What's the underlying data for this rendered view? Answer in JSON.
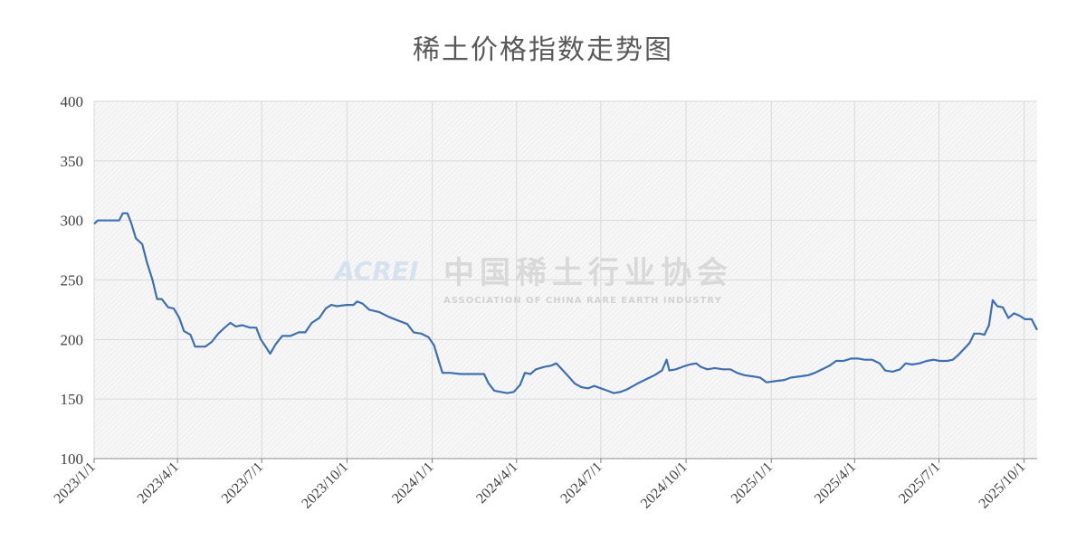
{
  "chart_data": {
    "type": "line",
    "title": "稀土价格指数走势图",
    "xlabel": "",
    "ylabel": "",
    "ylim": [
      100,
      400
    ],
    "yticks": [
      100,
      150,
      200,
      250,
      300,
      350,
      400
    ],
    "xticks": [
      "2023/1/1",
      "2023/4/1",
      "2023/7/1",
      "2023/10/1",
      "2024/1/1",
      "2024/4/1",
      "2024/7/1",
      "2024/10/1",
      "2025/1/1",
      "2025/4/1",
      "2025/7/1",
      "2025/10/1"
    ],
    "xlim": [
      "2023-01-01",
      "2025-10-15"
    ],
    "grid": true,
    "legend": "none",
    "series": [
      {
        "color": "#3d6fb4",
        "points": [
          [
            "2023-01-01",
            297
          ],
          [
            "2023-01-05",
            300
          ],
          [
            "2023-01-15",
            300
          ],
          [
            "2023-01-28",
            300
          ],
          [
            "2023-02-01",
            306
          ],
          [
            "2023-02-06",
            306
          ],
          [
            "2023-02-10",
            298
          ],
          [
            "2023-02-15",
            285
          ],
          [
            "2023-02-22",
            280
          ],
          [
            "2023-02-27",
            265
          ],
          [
            "2023-03-05",
            250
          ],
          [
            "2023-03-10",
            234
          ],
          [
            "2023-03-15",
            234
          ],
          [
            "2023-03-22",
            227
          ],
          [
            "2023-03-28",
            226
          ],
          [
            "2023-04-03",
            218
          ],
          [
            "2023-04-08",
            207
          ],
          [
            "2023-04-15",
            204
          ],
          [
            "2023-04-20",
            194
          ],
          [
            "2023-05-01",
            194
          ],
          [
            "2023-05-08",
            198
          ],
          [
            "2023-05-15",
            205
          ],
          [
            "2023-05-22",
            210
          ],
          [
            "2023-05-28",
            214
          ],
          [
            "2023-06-03",
            211
          ],
          [
            "2023-06-10",
            212
          ],
          [
            "2023-06-18",
            210
          ],
          [
            "2023-06-25",
            210
          ],
          [
            "2023-06-30",
            200
          ],
          [
            "2023-07-06",
            193
          ],
          [
            "2023-07-10",
            188
          ],
          [
            "2023-07-16",
            196
          ],
          [
            "2023-07-23",
            203
          ],
          [
            "2023-08-01",
            203
          ],
          [
            "2023-08-10",
            206
          ],
          [
            "2023-08-17",
            206
          ],
          [
            "2023-08-24",
            214
          ],
          [
            "2023-09-01",
            218
          ],
          [
            "2023-09-08",
            226
          ],
          [
            "2023-09-14",
            229
          ],
          [
            "2023-09-20",
            228
          ],
          [
            "2023-10-01",
            229
          ],
          [
            "2023-10-08",
            229
          ],
          [
            "2023-10-12",
            232
          ],
          [
            "2023-10-18",
            230
          ],
          [
            "2023-10-25",
            225
          ],
          [
            "2023-11-05",
            223
          ],
          [
            "2023-11-15",
            219
          ],
          [
            "2023-11-25",
            216
          ],
          [
            "2023-12-05",
            213
          ],
          [
            "2023-12-12",
            206
          ],
          [
            "2023-12-20",
            205
          ],
          [
            "2023-12-28",
            202
          ],
          [
            "2024-01-03",
            195
          ],
          [
            "2024-01-08",
            182
          ],
          [
            "2024-01-12",
            172
          ],
          [
            "2024-01-20",
            172
          ],
          [
            "2024-02-01",
            171
          ],
          [
            "2024-02-15",
            171
          ],
          [
            "2024-02-26",
            171
          ],
          [
            "2024-03-02",
            163
          ],
          [
            "2024-03-08",
            157
          ],
          [
            "2024-03-15",
            156
          ],
          [
            "2024-03-22",
            155
          ],
          [
            "2024-03-29",
            156
          ],
          [
            "2024-04-05",
            162
          ],
          [
            "2024-04-10",
            172
          ],
          [
            "2024-04-16",
            171
          ],
          [
            "2024-04-22",
            175
          ],
          [
            "2024-05-01",
            177
          ],
          [
            "2024-05-08",
            178
          ],
          [
            "2024-05-14",
            180
          ],
          [
            "2024-05-20",
            175
          ],
          [
            "2024-05-27",
            169
          ],
          [
            "2024-06-03",
            163
          ],
          [
            "2024-06-10",
            160
          ],
          [
            "2024-06-17",
            159
          ],
          [
            "2024-06-24",
            161
          ],
          [
            "2024-07-01",
            159
          ],
          [
            "2024-07-08",
            157
          ],
          [
            "2024-07-15",
            155
          ],
          [
            "2024-07-22",
            156
          ],
          [
            "2024-07-29",
            158
          ],
          [
            "2024-08-05",
            161
          ],
          [
            "2024-08-12",
            164
          ],
          [
            "2024-08-20",
            167
          ],
          [
            "2024-08-28",
            170
          ],
          [
            "2024-09-05",
            174
          ],
          [
            "2024-09-10",
            183
          ],
          [
            "2024-09-13",
            174
          ],
          [
            "2024-09-20",
            175
          ],
          [
            "2024-09-27",
            177
          ],
          [
            "2024-10-05",
            179
          ],
          [
            "2024-10-12",
            180
          ],
          [
            "2024-10-17",
            177
          ],
          [
            "2024-10-24",
            175
          ],
          [
            "2024-11-01",
            176
          ],
          [
            "2024-11-10",
            175
          ],
          [
            "2024-11-18",
            175
          ],
          [
            "2024-11-25",
            172
          ],
          [
            "2024-12-03",
            170
          ],
          [
            "2024-12-12",
            169
          ],
          [
            "2024-12-20",
            168
          ],
          [
            "2024-12-27",
            164
          ],
          [
            "2025-01-05",
            165
          ],
          [
            "2025-01-15",
            166
          ],
          [
            "2025-01-22",
            168
          ],
          [
            "2025-02-01",
            169
          ],
          [
            "2025-02-10",
            170
          ],
          [
            "2025-02-17",
            172
          ],
          [
            "2025-02-25",
            175
          ],
          [
            "2025-03-05",
            178
          ],
          [
            "2025-03-12",
            182
          ],
          [
            "2025-03-20",
            182
          ],
          [
            "2025-03-28",
            184
          ],
          [
            "2025-04-05",
            184
          ],
          [
            "2025-04-12",
            183
          ],
          [
            "2025-04-20",
            183
          ],
          [
            "2025-04-28",
            180
          ],
          [
            "2025-05-04",
            174
          ],
          [
            "2025-05-12",
            173
          ],
          [
            "2025-05-20",
            175
          ],
          [
            "2025-05-26",
            180
          ],
          [
            "2025-06-02",
            179
          ],
          [
            "2025-06-10",
            180
          ],
          [
            "2025-06-18",
            182
          ],
          [
            "2025-06-25",
            183
          ],
          [
            "2025-07-02",
            182
          ],
          [
            "2025-07-10",
            182
          ],
          [
            "2025-07-16",
            183
          ],
          [
            "2025-07-22",
            187
          ],
          [
            "2025-07-28",
            192
          ],
          [
            "2025-08-03",
            197
          ],
          [
            "2025-08-08",
            205
          ],
          [
            "2025-08-14",
            205
          ],
          [
            "2025-08-19",
            204
          ],
          [
            "2025-08-24",
            212
          ],
          [
            "2025-08-28",
            233
          ],
          [
            "2025-09-02",
            228
          ],
          [
            "2025-09-08",
            227
          ],
          [
            "2025-09-14",
            218
          ],
          [
            "2025-09-20",
            222
          ],
          [
            "2025-09-26",
            220
          ],
          [
            "2025-10-02",
            217
          ],
          [
            "2025-10-09",
            217
          ],
          [
            "2025-10-15",
            208
          ]
        ]
      }
    ]
  },
  "watermark": {
    "logo_text": "ACREI",
    "chinese_name": "中国稀土行业协会",
    "english_name": "ASSOCIATION OF CHINA RARE EARTH INDUSTRY"
  }
}
